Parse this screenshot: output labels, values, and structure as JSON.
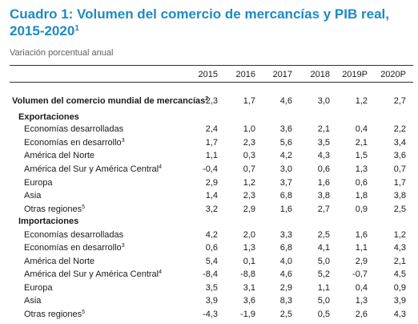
{
  "title_main": "Cuadro 1: Volumen del comercio de mercancías y PIB real, 2015-2020",
  "title_sup": "1",
  "subtitle": "Variación porcentual anual",
  "years": [
    "2015",
    "2016",
    "2017",
    "2018",
    "2019P",
    "2020P"
  ],
  "rows": [
    {
      "label": "Volumen del comercio mundial de mercancías",
      "sup": "2",
      "type": "total",
      "values": [
        "2,3",
        "1,7",
        "4,6",
        "3,0",
        "1,2",
        "2,7"
      ]
    },
    {
      "label": "Exportaciones",
      "sup": "",
      "type": "section",
      "values": []
    },
    {
      "label": "Economías desarrolladas",
      "sup": "",
      "type": "item",
      "values": [
        "2,4",
        "1,0",
        "3,6",
        "2,1",
        "0,4",
        "2,2"
      ]
    },
    {
      "label": "Economías en desarrollo",
      "sup": "3",
      "type": "item",
      "values": [
        "1,7",
        "2,3",
        "5,6",
        "3,5",
        "2,1",
        "3,4"
      ]
    },
    {
      "label": "América del Norte",
      "sup": "",
      "type": "item",
      "values": [
        "1,1",
        "0,3",
        "4,2",
        "4,3",
        "1,5",
        "3,6"
      ]
    },
    {
      "label": "América del Sur y América Central",
      "sup": "4",
      "type": "item",
      "values": [
        "-0,4",
        "0,7",
        "3,0",
        "0,6",
        "1,3",
        "0,7"
      ]
    },
    {
      "label": "Europa",
      "sup": "",
      "type": "item",
      "values": [
        "2,9",
        "1,2",
        "3,7",
        "1,6",
        "0,6",
        "1,7"
      ]
    },
    {
      "label": "Asia",
      "sup": "",
      "type": "item",
      "values": [
        "1,4",
        "2,3",
        "6,8",
        "3,8",
        "1,8",
        "3,8"
      ]
    },
    {
      "label": "Otras regiones",
      "sup": "5",
      "type": "item",
      "values": [
        "3,2",
        "2,9",
        "1,6",
        "2,7",
        "0,9",
        "2,5"
      ]
    },
    {
      "label": "Importaciones",
      "sup": "",
      "type": "section",
      "values": []
    },
    {
      "label": "Economías desarrolladas",
      "sup": "",
      "type": "item",
      "values": [
        "4,2",
        "2,0",
        "3,3",
        "2,5",
        "1,6",
        "1,2"
      ]
    },
    {
      "label": "Economías en desarrollo",
      "sup": "3",
      "type": "item",
      "values": [
        "0,6",
        "1,3",
        "6,8",
        "4,1",
        "1,1",
        "4,3"
      ]
    },
    {
      "label": "América del Norte",
      "sup": "",
      "type": "item",
      "values": [
        "5,4",
        "0,1",
        "4,0",
        "5,0",
        "2,9",
        "2,1"
      ]
    },
    {
      "label": "América del Sur y América Central",
      "sup": "4",
      "type": "item",
      "values": [
        "-8,4",
        "-8,8",
        "4,6",
        "5,2",
        "-0,7",
        "4,5"
      ]
    },
    {
      "label": "Europa",
      "sup": "",
      "type": "item",
      "values": [
        "3,5",
        "3,1",
        "2,9",
        "1,1",
        "0,4",
        "0,9"
      ]
    },
    {
      "label": "Asia",
      "sup": "",
      "type": "item",
      "values": [
        "3,9",
        "3,6",
        "8,3",
        "5,0",
        "1,3",
        "3,9"
      ]
    },
    {
      "label": "Otras regiones",
      "sup": "5",
      "type": "item",
      "values": [
        "-4,3",
        "-1,9",
        "2,5",
        "0,5",
        "2,6",
        "4,3"
      ]
    }
  ]
}
